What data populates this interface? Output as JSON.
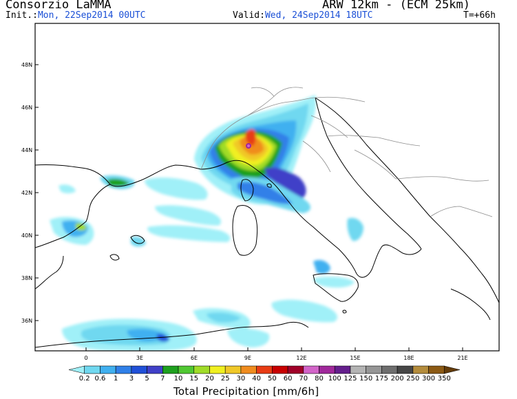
{
  "header": {
    "organization": "Consorzio LaMMA",
    "model": "ARW 12km - (ECM 25km)",
    "init_label": "Init.:",
    "init_value": "Mon, 22Sep2014 00UTC",
    "valid_label": "Valid:",
    "valid_value": "Wed, 24Sep2014 18UTC",
    "lead_time": "T=+66h"
  },
  "map": {
    "lat_labels": [
      "48N",
      "46N",
      "44N",
      "42N",
      "40N",
      "38N",
      "36N"
    ],
    "lon_labels": [
      "0",
      "3E",
      "6E",
      "9E",
      "12E",
      "15E",
      "18E",
      "21E"
    ],
    "colors": {
      "land_background": "#ffffff",
      "coastline": "#000000",
      "borders": "#8c8c8c",
      "frame": "#000000"
    }
  },
  "colorbar": {
    "title": "Total Precipitation [mm/6h]",
    "levels": [
      "0.2",
      "0.6",
      "1",
      "3",
      "5",
      "7",
      "10",
      "15",
      "20",
      "25",
      "30",
      "40",
      "50",
      "60",
      "70",
      "80",
      "100",
      "125",
      "150",
      "175",
      "200",
      "250",
      "300",
      "350"
    ],
    "colors": [
      "#a0f0f8",
      "#70d8f0",
      "#40b0f0",
      "#3080e8",
      "#2050d8",
      "#4040c8",
      "#1ea01e",
      "#50c832",
      "#a0dc28",
      "#f0f020",
      "#f0c828",
      "#f08c1e",
      "#e83c14",
      "#c80000",
      "#a00028",
      "#d264c8",
      "#a0289b",
      "#641e8c",
      "#b4b4b4",
      "#969696",
      "#6e6e6e",
      "#464646",
      "#b48c3c",
      "#8c5a14",
      "#643c0a"
    ]
  }
}
